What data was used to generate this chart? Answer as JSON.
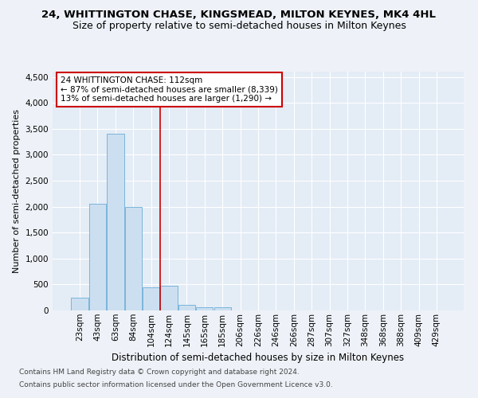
{
  "title": "24, WHITTINGTON CHASE, KINGSMEAD, MILTON KEYNES, MK4 4HL",
  "subtitle": "Size of property relative to semi-detached houses in Milton Keynes",
  "xlabel": "Distribution of semi-detached houses by size in Milton Keynes",
  "ylabel": "Number of semi-detached properties",
  "categories": [
    "23sqm",
    "43sqm",
    "63sqm",
    "84sqm",
    "104sqm",
    "124sqm",
    "145sqm",
    "165sqm",
    "185sqm",
    "206sqm",
    "226sqm",
    "246sqm",
    "266sqm",
    "287sqm",
    "307sqm",
    "327sqm",
    "348sqm",
    "368sqm",
    "388sqm",
    "409sqm",
    "429sqm"
  ],
  "values": [
    250,
    2050,
    3400,
    2000,
    450,
    470,
    100,
    60,
    60,
    0,
    0,
    0,
    0,
    0,
    0,
    0,
    0,
    0,
    0,
    0,
    0
  ],
  "bar_color": "#ccdff0",
  "bar_edge_color": "#6aaed6",
  "annotation_line1": "24 WHITTINGTON CHASE: 112sqm",
  "annotation_line2": "← 87% of semi-detached houses are smaller (8,339)",
  "annotation_line3": "13% of semi-detached houses are larger (1,290) →",
  "annotation_box_color": "#ffffff",
  "annotation_box_edge": "#cc0000",
  "ylim": [
    0,
    4600
  ],
  "yticks": [
    0,
    500,
    1000,
    1500,
    2000,
    2500,
    3000,
    3500,
    4000,
    4500
  ],
  "footer1": "Contains HM Land Registry data © Crown copyright and database right 2024.",
  "footer2": "Contains public sector information licensed under the Open Government Licence v3.0.",
  "bg_color": "#eef2f8",
  "plot_bg_color": "#e4ecf6",
  "grid_color": "#ffffff",
  "title_fontsize": 9.5,
  "subtitle_fontsize": 9,
  "xlabel_fontsize": 8.5,
  "ylabel_fontsize": 8,
  "tick_fontsize": 7.5,
  "ann_fontsize": 7.5,
  "footer_fontsize": 6.5,
  "red_line_color": "#cc0000",
  "red_line_x": 4.5
}
